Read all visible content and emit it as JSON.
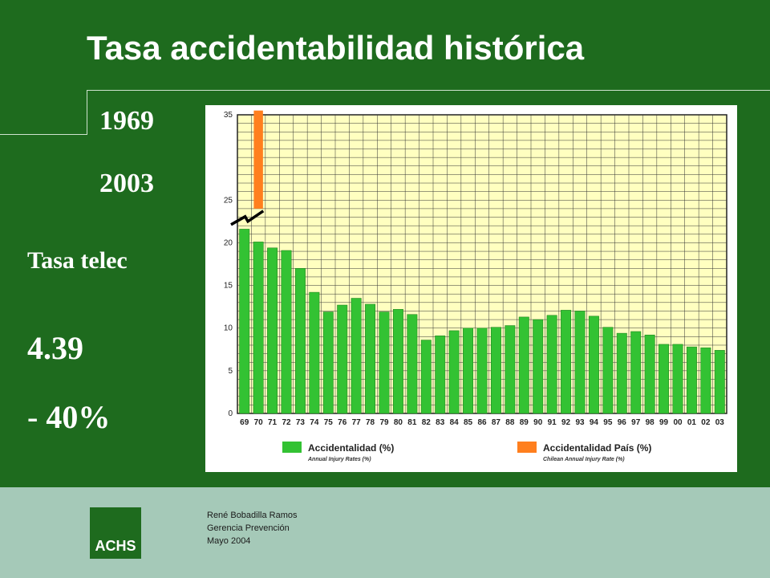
{
  "slide": {
    "title": "Tasa accidentabilidad histórica",
    "year_start": "1969",
    "year_end": "2003",
    "rate_label": "Tasa telec",
    "rate_value": "4.39",
    "rate_change": "- 40%"
  },
  "footer": {
    "logo_text": "ACHS",
    "author": "René Bobadilla Ramos",
    "department": "Gerencia Prevención",
    "date": "Mayo 2004"
  },
  "colors": {
    "background": "#1e6b1e",
    "footer": "#a5c9b8",
    "plot_background": "#ffffc0",
    "company_bar": "#33c233",
    "country_bar": "#ff7f1e"
  },
  "chart_data": {
    "type": "bar",
    "title": "",
    "xlabel": "",
    "ylabel": "",
    "ylim": [
      0,
      35
    ],
    "yticks": [
      "0",
      "5",
      "10",
      "15",
      "20",
      "25",
      "35"
    ],
    "grid": true,
    "legend_position": "bottom",
    "categories": [
      "69",
      "70",
      "71",
      "72",
      "73",
      "74",
      "75",
      "76",
      "77",
      "78",
      "79",
      "80",
      "81",
      "82",
      "83",
      "84",
      "85",
      "86",
      "87",
      "88",
      "89",
      "90",
      "91",
      "92",
      "93",
      "94",
      "95",
      "96",
      "97",
      "98",
      "99",
      "00",
      "01",
      "02",
      "03"
    ],
    "series": [
      {
        "name": "Accidentalidad (%)",
        "subname": "Annual Injury Rates (%)",
        "color": "#33c233",
        "values": [
          21.6,
          20.1,
          19.4,
          19.1,
          17.0,
          14.2,
          11.9,
          12.7,
          13.5,
          12.8,
          11.9,
          12.2,
          11.6,
          8.6,
          9.1,
          9.7,
          10.0,
          10.0,
          10.1,
          10.3,
          11.3,
          11.0,
          11.5,
          12.1,
          12.0,
          11.4,
          10.1,
          9.4,
          9.6,
          9.2,
          8.1,
          8.1,
          7.8,
          7.7,
          7.4
        ]
      },
      {
        "name": "Accidentalidad País (%)",
        "subname": "Chilean Annual Injury Rate (%)",
        "color": "#ff7f1e",
        "category": "70",
        "range": [
          24,
          35.5
        ]
      }
    ]
  }
}
